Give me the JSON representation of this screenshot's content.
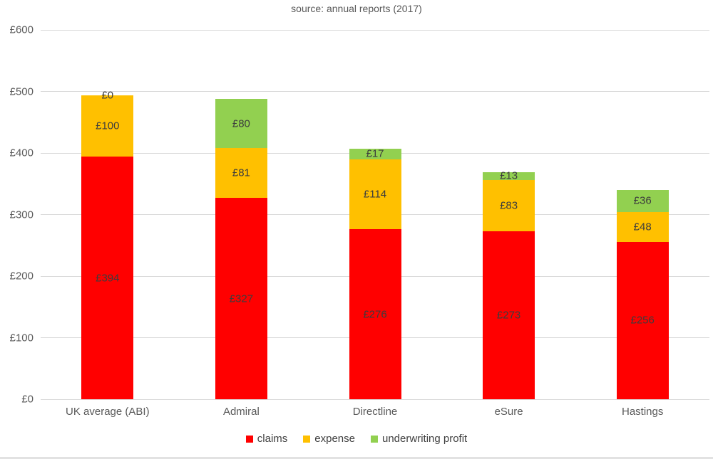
{
  "title": "source: annual reports (2017)",
  "chart_data": {
    "type": "bar",
    "subtype": "stacked-column",
    "title": "source: annual reports (2017)",
    "categories": [
      "UK average (ABI)",
      "Admiral",
      "Directline",
      "eSure",
      "Hastings"
    ],
    "series": [
      {
        "name": "claims",
        "color": "#ff0000",
        "values": [
          394,
          327,
          276,
          273,
          256
        ],
        "value_labels": [
          "£394",
          "£327",
          "£276",
          "£273",
          "£256"
        ]
      },
      {
        "name": "expense",
        "color": "#ffc000",
        "values": [
          100,
          81,
          114,
          83,
          48
        ],
        "value_labels": [
          "£100",
          "£81",
          "£114",
          "£83",
          "£48"
        ]
      },
      {
        "name": "underwriting profit",
        "color": "#92d050",
        "values": [
          0,
          80,
          17,
          13,
          36
        ],
        "value_labels": [
          "£0",
          "£80",
          "£17",
          "£13",
          "£36"
        ]
      }
    ],
    "xlabel": "",
    "ylabel": "",
    "ylim": [
      0,
      600
    ],
    "yticks": [
      {
        "value": 0,
        "label": "£0"
      },
      {
        "value": 100,
        "label": "£100"
      },
      {
        "value": 200,
        "label": "£200"
      },
      {
        "value": 300,
        "label": "£300"
      },
      {
        "value": 400,
        "label": "£400"
      },
      {
        "value": 500,
        "label": "£500"
      },
      {
        "value": 600,
        "label": "£600"
      }
    ],
    "grid": true,
    "legend_position": "bottom",
    "legend_labels": [
      "claims",
      "expense",
      "underwriting profit"
    ]
  },
  "colors": {
    "claims": "#ff0000",
    "expense": "#ffc000",
    "underwriting_profit": "#92d050",
    "gridline": "#d9d9d9",
    "axis_text": "#595959",
    "data_label_text": "#3d3d3d",
    "background": "#ffffff"
  }
}
